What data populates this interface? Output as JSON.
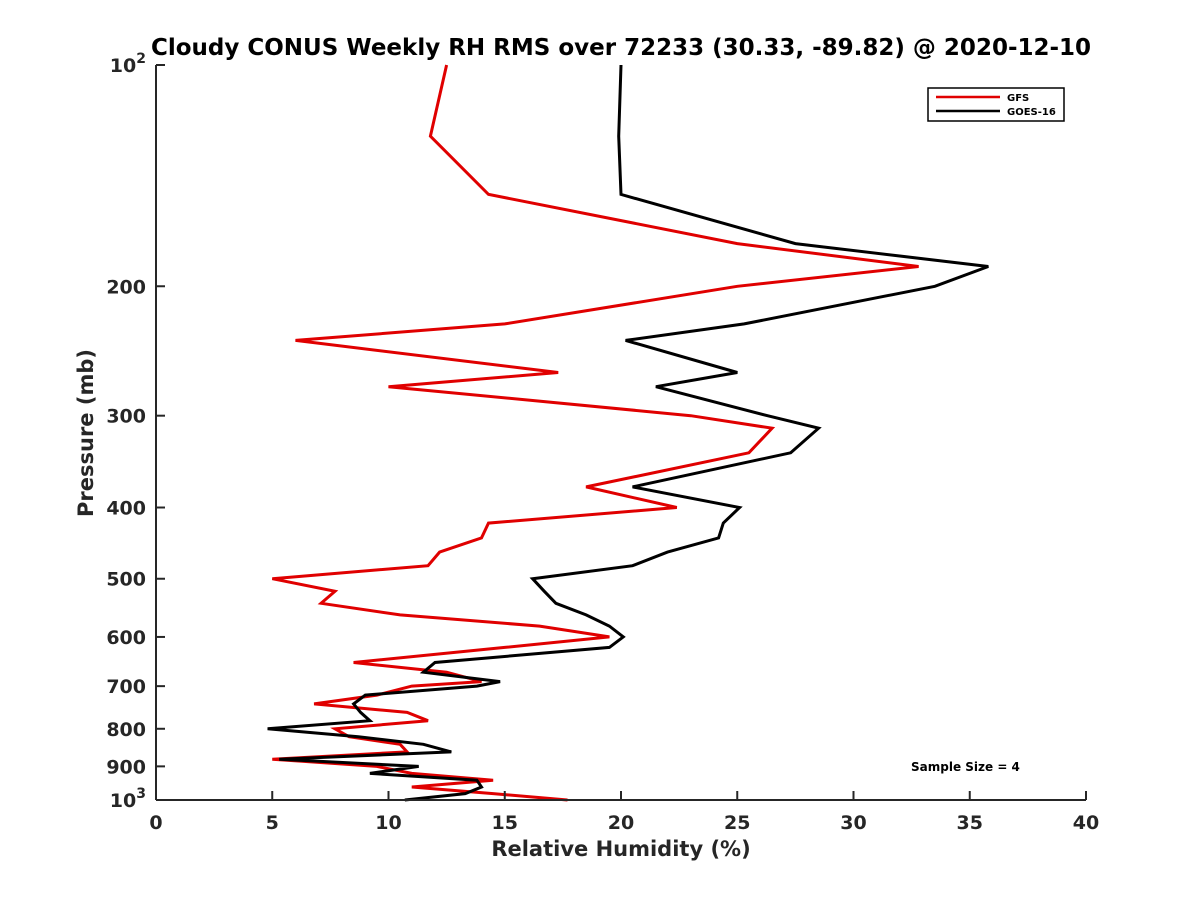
{
  "chart_data": {
    "type": "line",
    "title": "Cloudy CONUS Weekly RH RMS over 72233 (30.33, -89.82) @ 2020-12-10",
    "xlabel": "Relative Humidity (%)",
    "ylabel": "Pressure (mb)",
    "xlim": [
      0,
      40
    ],
    "ylim": [
      100,
      1000
    ],
    "yscale": "log",
    "y_reversed": true,
    "x_ticks": [
      0,
      5,
      10,
      15,
      20,
      25,
      30,
      35,
      40
    ],
    "x_tick_labels": [
      "0",
      "5",
      "10",
      "15",
      "20",
      "25",
      "30",
      "35",
      "40"
    ],
    "y_ticks": [
      100,
      200,
      300,
      400,
      500,
      600,
      700,
      800,
      900,
      1000
    ],
    "y_tick_labels": [
      {
        "base": "10",
        "exp": "2"
      },
      {
        "base": "200"
      },
      {
        "base": "300"
      },
      {
        "base": "400"
      },
      {
        "base": "500"
      },
      {
        "base": "600"
      },
      {
        "base": "700"
      },
      {
        "base": "800"
      },
      {
        "base": "900"
      },
      {
        "base": "10",
        "exp": "3"
      }
    ],
    "legend": {
      "position": "top-right",
      "entries": [
        "GFS",
        "GOES-16"
      ]
    },
    "annotation": "Sample Size = 4",
    "series": [
      {
        "name": "GFS",
        "color": "#e00000",
        "points": [
          {
            "p": 100,
            "v": 12.5
          },
          {
            "p": 125,
            "v": 11.8
          },
          {
            "p": 150,
            "v": 14.3
          },
          {
            "p": 175,
            "v": 25.0
          },
          {
            "p": 188,
            "v": 32.8
          },
          {
            "p": 200,
            "v": 25.0
          },
          {
            "p": 225,
            "v": 15.0
          },
          {
            "p": 237,
            "v": 6.0
          },
          {
            "p": 262,
            "v": 17.3
          },
          {
            "p": 274,
            "v": 10.0
          },
          {
            "p": 300,
            "v": 23.0
          },
          {
            "p": 312,
            "v": 26.5
          },
          {
            "p": 337,
            "v": 25.5
          },
          {
            "p": 375,
            "v": 18.5
          },
          {
            "p": 400,
            "v": 22.4
          },
          {
            "p": 420,
            "v": 14.3
          },
          {
            "p": 440,
            "v": 14.0
          },
          {
            "p": 460,
            "v": 12.2
          },
          {
            "p": 480,
            "v": 11.7
          },
          {
            "p": 500,
            "v": 5.0
          },
          {
            "p": 520,
            "v": 7.7
          },
          {
            "p": 540,
            "v": 7.1
          },
          {
            "p": 560,
            "v": 10.5
          },
          {
            "p": 580,
            "v": 16.5
          },
          {
            "p": 600,
            "v": 19.5
          },
          {
            "p": 620,
            "v": 15.0
          },
          {
            "p": 650,
            "v": 8.5
          },
          {
            "p": 670,
            "v": 12.5
          },
          {
            "p": 690,
            "v": 14.0
          },
          {
            "p": 700,
            "v": 11.0
          },
          {
            "p": 720,
            "v": 9.5
          },
          {
            "p": 740,
            "v": 6.8
          },
          {
            "p": 760,
            "v": 10.8
          },
          {
            "p": 780,
            "v": 11.7
          },
          {
            "p": 800,
            "v": 7.7
          },
          {
            "p": 820,
            "v": 8.3
          },
          {
            "p": 840,
            "v": 10.5
          },
          {
            "p": 860,
            "v": 10.8
          },
          {
            "p": 880,
            "v": 5.0
          },
          {
            "p": 900,
            "v": 9.5
          },
          {
            "p": 920,
            "v": 11.0
          },
          {
            "p": 940,
            "v": 14.5
          },
          {
            "p": 960,
            "v": 11.0
          },
          {
            "p": 980,
            "v": 14.5
          },
          {
            "p": 1000,
            "v": 17.7
          }
        ]
      },
      {
        "name": "GOES-16",
        "color": "#000000",
        "points": [
          {
            "p": 100,
            "v": 20.0
          },
          {
            "p": 125,
            "v": 19.9
          },
          {
            "p": 150,
            "v": 20.0
          },
          {
            "p": 175,
            "v": 27.5
          },
          {
            "p": 188,
            "v": 35.8
          },
          {
            "p": 200,
            "v": 33.5
          },
          {
            "p": 225,
            "v": 25.3
          },
          {
            "p": 237,
            "v": 20.2
          },
          {
            "p": 262,
            "v": 25.0
          },
          {
            "p": 274,
            "v": 21.5
          },
          {
            "p": 300,
            "v": 26.3
          },
          {
            "p": 312,
            "v": 28.5
          },
          {
            "p": 337,
            "v": 27.3
          },
          {
            "p": 375,
            "v": 20.5
          },
          {
            "p": 400,
            "v": 25.1
          },
          {
            "p": 420,
            "v": 24.4
          },
          {
            "p": 440,
            "v": 24.2
          },
          {
            "p": 460,
            "v": 22.0
          },
          {
            "p": 480,
            "v": 20.5
          },
          {
            "p": 500,
            "v": 16.2
          },
          {
            "p": 520,
            "v": 16.7
          },
          {
            "p": 540,
            "v": 17.2
          },
          {
            "p": 560,
            "v": 18.5
          },
          {
            "p": 580,
            "v": 19.5
          },
          {
            "p": 600,
            "v": 20.1
          },
          {
            "p": 620,
            "v": 19.5
          },
          {
            "p": 650,
            "v": 12.0
          },
          {
            "p": 670,
            "v": 11.5
          },
          {
            "p": 690,
            "v": 14.8
          },
          {
            "p": 700,
            "v": 13.8
          },
          {
            "p": 720,
            "v": 9.0
          },
          {
            "p": 740,
            "v": 8.5
          },
          {
            "p": 760,
            "v": 8.8
          },
          {
            "p": 780,
            "v": 9.2
          },
          {
            "p": 800,
            "v": 4.8
          },
          {
            "p": 820,
            "v": 8.7
          },
          {
            "p": 840,
            "v": 11.5
          },
          {
            "p": 860,
            "v": 12.7
          },
          {
            "p": 880,
            "v": 5.3
          },
          {
            "p": 900,
            "v": 11.3
          },
          {
            "p": 920,
            "v": 9.2
          },
          {
            "p": 940,
            "v": 13.8
          },
          {
            "p": 960,
            "v": 14.0
          },
          {
            "p": 980,
            "v": 13.3
          },
          {
            "p": 1000,
            "v": 10.7
          }
        ]
      }
    ]
  }
}
